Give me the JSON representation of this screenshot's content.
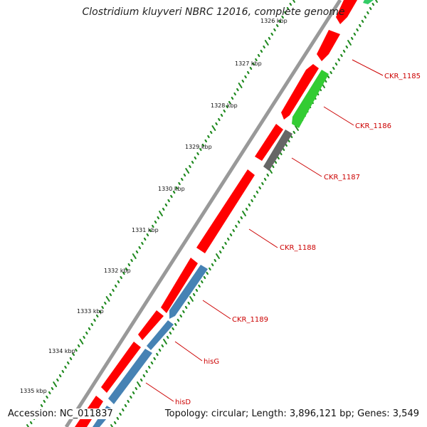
{
  "title": "Clostridium kluyveri NBRC 12016, complete genome",
  "footer": {
    "accession": "Accession: NC_011837",
    "summary": "Topology: circular; Length: 3,896,121 bp; Genes: 3,549"
  },
  "colors": {
    "forward_gene": "#ff0000",
    "reverse_gene_blue": "#4682b4",
    "reverse_gene_green": "#33cc33",
    "reverse_gene_grey": "#666666",
    "tick_dots": "#228b22",
    "label_red": "#cc0000",
    "backbone": "#999999"
  },
  "kbp_labels": [
    "1326 kbp",
    "1327 kbp",
    "1328 kbp",
    "1329 kbp",
    "1330 kbp",
    "1331 kbp",
    "1332 kbp",
    "1333 kbp",
    "1334 kbp",
    "1335 kbp"
  ],
  "gene_labels": [
    "CKR_1185",
    "CKR_1186",
    "CKR_1187",
    "CKR_1188",
    "CKR_1189",
    "hisG",
    "hisD"
  ]
}
